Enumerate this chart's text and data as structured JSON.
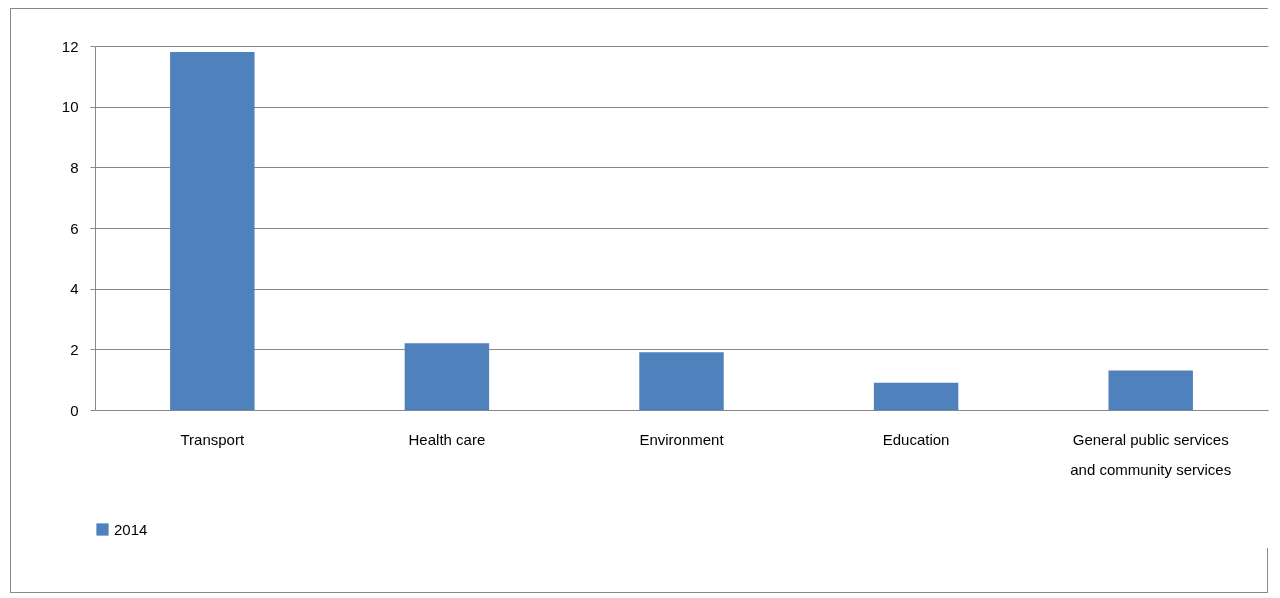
{
  "chart_data": {
    "type": "bar",
    "categories": [
      "Transport",
      "Health care",
      "Environment",
      "Education",
      "General public services and community services"
    ],
    "series": [
      {
        "name": "2014",
        "color": "#4f81bd",
        "values": [
          11.8,
          2.2,
          1.9,
          0.9,
          1.3
        ]
      }
    ],
    "ylim": [
      0,
      12
    ],
    "yticks": [
      0,
      2,
      4,
      6,
      8,
      10,
      12
    ],
    "grid": "y",
    "legend": "bottom"
  }
}
